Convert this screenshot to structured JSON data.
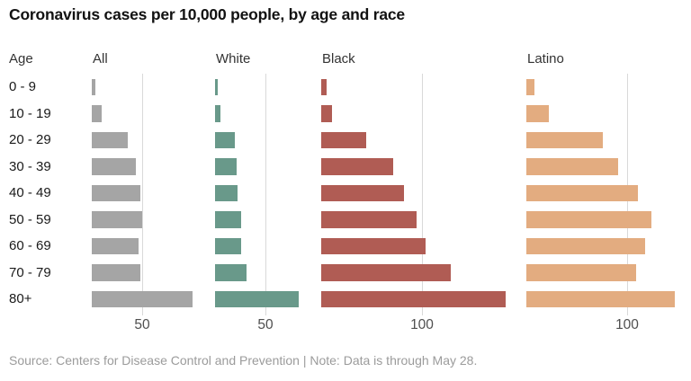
{
  "title": "Coronavirus cases per 10,000 people, by age and race",
  "age_column_header": "Age",
  "source_note": "Source: Centers for Disease Control and Prevention | Note: Data is through May 28.",
  "chart_data": {
    "type": "bar",
    "orientation": "horizontal",
    "title": "Coronavirus cases per 10,000 people, by age and race",
    "categories": [
      "0 - 9",
      "10 - 19",
      "20 - 29",
      "30 - 39",
      "40 - 49",
      "50 - 59",
      "60 - 69",
      "70 - 79",
      "80+"
    ],
    "series": [
      {
        "name": "All",
        "color": "#a5a5a5",
        "axis_tick": 50,
        "values": [
          4,
          10,
          36,
          44,
          48,
          50,
          46,
          48,
          100
        ]
      },
      {
        "name": "White",
        "color": "#69998a",
        "axis_tick": 50,
        "values": [
          3,
          5,
          20,
          21,
          22,
          26,
          26,
          31,
          83
        ]
      },
      {
        "name": "Black",
        "color": "#b05c54",
        "axis_tick": 100,
        "values": [
          5,
          11,
          45,
          71,
          82,
          95,
          104,
          129,
          183
        ]
      },
      {
        "name": "Latino",
        "color": "#e3ac80",
        "axis_tick": 100,
        "values": [
          8,
          22,
          76,
          91,
          111,
          124,
          118,
          109,
          147
        ]
      }
    ],
    "xlim": [
      0,
      190
    ],
    "grid": "single vertical tick line per panel, behind bars",
    "legend_position": "panel headers above each small-multiple",
    "gridline_color": "#d9d9d9",
    "text_colors": {
      "title": "#121212",
      "labels": "#1a1a1a",
      "ticks": "#4f4f4f",
      "source": "#9b9b9b"
    }
  }
}
